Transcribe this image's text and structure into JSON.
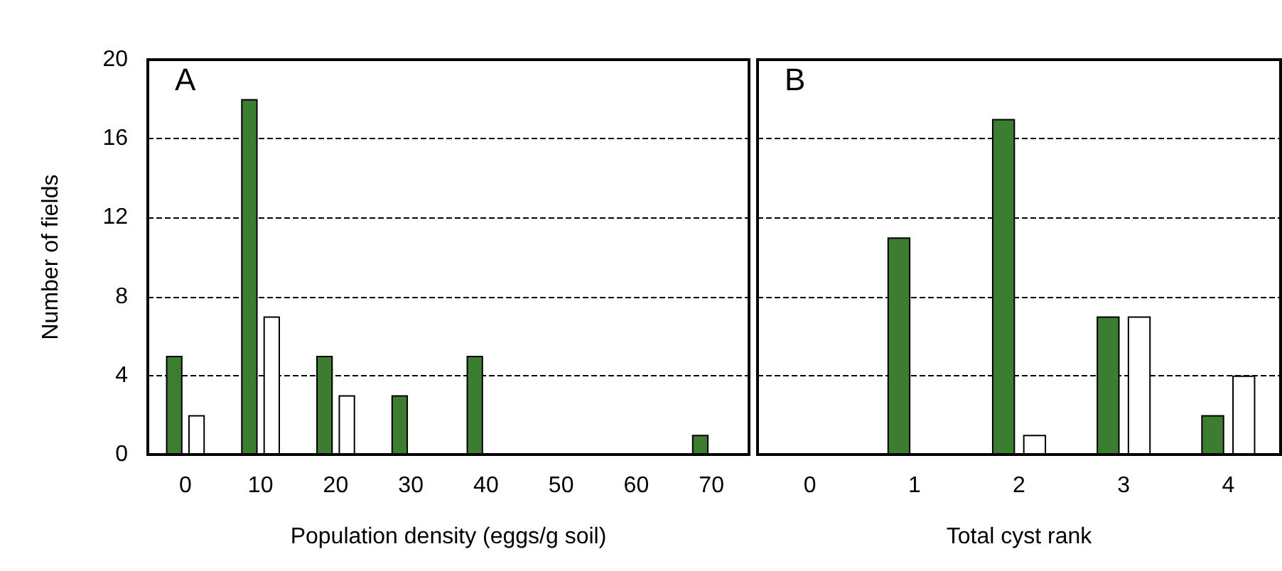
{
  "chart_data": [
    {
      "type": "bar",
      "title": "A",
      "xlabel": "Population density (eggs/g soil)",
      "ylabel": "Number of fields",
      "categories": [
        "0",
        "10",
        "20",
        "30",
        "40",
        "50",
        "60",
        "70"
      ],
      "series": [
        {
          "color": "#3d7d32",
          "values": [
            5,
            18,
            5,
            3,
            5,
            null,
            null,
            1
          ]
        },
        {
          "color": "#ffffff",
          "values": [
            2,
            7,
            3,
            null,
            null,
            null,
            null,
            null
          ]
        }
      ],
      "ylim": [
        0,
        20
      ],
      "yticks": [
        0,
        4,
        8,
        12,
        16,
        20
      ],
      "grid": "y"
    },
    {
      "type": "bar",
      "title": "B",
      "xlabel": "Total cyst rank",
      "categories": [
        "0",
        "1",
        "2",
        "3",
        "4"
      ],
      "series": [
        {
          "color": "#3d7d32",
          "values": [
            null,
            11,
            17,
            7,
            2
          ]
        },
        {
          "color": "#ffffff",
          "values": [
            null,
            null,
            1,
            7,
            4
          ]
        }
      ],
      "ylim": [
        0,
        20
      ],
      "yticks": [
        0,
        4,
        8,
        12,
        16,
        20
      ],
      "grid": "y",
      "tick_labels": "x"
    }
  ]
}
